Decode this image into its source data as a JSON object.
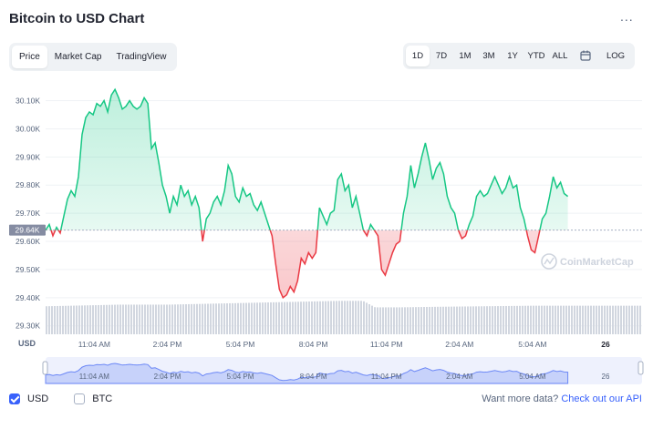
{
  "header": {
    "title": "Bitcoin to USD Chart",
    "more_label": "..."
  },
  "type_tabs": [
    "Price",
    "Market Cap",
    "TradingView"
  ],
  "active_type_tab": 0,
  "range_tabs": [
    "1D",
    "7D",
    "1M",
    "3M",
    "1Y",
    "YTD",
    "ALL"
  ],
  "active_range_tab": 0,
  "log_label": "LOG",
  "watermark": "CoinMarketCap",
  "currency_label": "USD",
  "current_price_label": "29.64K",
  "footer": {
    "usd_label": "USD",
    "btc_label": "BTC",
    "usd_checked": true,
    "btc_checked": false,
    "more_data_text": "Want more data?",
    "api_link_text": "Check out our API"
  },
  "colors": {
    "up": "#16c784",
    "down": "#ea3943",
    "accent": "#3861fb",
    "grid": "#eff2f5"
  },
  "chart_data": {
    "type": "area",
    "y_ticks": [
      "30.10K",
      "30.00K",
      "29.90K",
      "29.80K",
      "29.70K",
      "29.60K",
      "29.50K",
      "29.40K",
      "29.30K"
    ],
    "y_tick_values": [
      30100,
      30000,
      29900,
      29800,
      29700,
      29600,
      29500,
      29400,
      29300
    ],
    "ylim": [
      29270,
      30160
    ],
    "x_ticks": [
      "11:04 AM",
      "2:04 PM",
      "5:04 PM",
      "8:04 PM",
      "11:04 PM",
      "2:04 AM",
      "5:04 AM",
      "26"
    ],
    "reference_price": 29640,
    "hours_range": [
      0,
      24.5
    ],
    "x_tick_hours": [
      2,
      5,
      8,
      11,
      14,
      17,
      20,
      23
    ],
    "points": [
      [
        0.0,
        29640
      ],
      [
        0.15,
        29660
      ],
      [
        0.3,
        29620
      ],
      [
        0.45,
        29650
      ],
      [
        0.6,
        29630
      ],
      [
        0.75,
        29690
      ],
      [
        0.9,
        29750
      ],
      [
        1.05,
        29780
      ],
      [
        1.2,
        29760
      ],
      [
        1.35,
        29830
      ],
      [
        1.5,
        29980
      ],
      [
        1.65,
        30040
      ],
      [
        1.8,
        30060
      ],
      [
        1.95,
        30050
      ],
      [
        2.1,
        30090
      ],
      [
        2.25,
        30080
      ],
      [
        2.4,
        30100
      ],
      [
        2.55,
        30060
      ],
      [
        2.7,
        30120
      ],
      [
        2.85,
        30140
      ],
      [
        3.0,
        30110
      ],
      [
        3.15,
        30070
      ],
      [
        3.3,
        30080
      ],
      [
        3.45,
        30100
      ],
      [
        3.6,
        30080
      ],
      [
        3.75,
        30070
      ],
      [
        3.9,
        30080
      ],
      [
        4.05,
        30110
      ],
      [
        4.2,
        30090
      ],
      [
        4.35,
        29930
      ],
      [
        4.5,
        29950
      ],
      [
        4.65,
        29880
      ],
      [
        4.8,
        29800
      ],
      [
        4.95,
        29760
      ],
      [
        5.1,
        29700
      ],
      [
        5.25,
        29760
      ],
      [
        5.4,
        29730
      ],
      [
        5.55,
        29800
      ],
      [
        5.7,
        29760
      ],
      [
        5.85,
        29780
      ],
      [
        6.0,
        29730
      ],
      [
        6.15,
        29760
      ],
      [
        6.3,
        29720
      ],
      [
        6.45,
        29600
      ],
      [
        6.6,
        29680
      ],
      [
        6.75,
        29700
      ],
      [
        6.9,
        29740
      ],
      [
        7.05,
        29760
      ],
      [
        7.2,
        29730
      ],
      [
        7.35,
        29780
      ],
      [
        7.5,
        29870
      ],
      [
        7.65,
        29840
      ],
      [
        7.8,
        29760
      ],
      [
        7.95,
        29740
      ],
      [
        8.1,
        29790
      ],
      [
        8.25,
        29760
      ],
      [
        8.4,
        29770
      ],
      [
        8.55,
        29730
      ],
      [
        8.7,
        29710
      ],
      [
        8.85,
        29740
      ],
      [
        9.0,
        29700
      ],
      [
        9.15,
        29660
      ],
      [
        9.3,
        29620
      ],
      [
        9.45,
        29520
      ],
      [
        9.6,
        29430
      ],
      [
        9.75,
        29400
      ],
      [
        9.9,
        29410
      ],
      [
        10.05,
        29440
      ],
      [
        10.2,
        29420
      ],
      [
        10.35,
        29460
      ],
      [
        10.5,
        29540
      ],
      [
        10.65,
        29520
      ],
      [
        10.8,
        29560
      ],
      [
        10.95,
        29540
      ],
      [
        11.1,
        29560
      ],
      [
        11.25,
        29720
      ],
      [
        11.4,
        29690
      ],
      [
        11.55,
        29660
      ],
      [
        11.7,
        29700
      ],
      [
        11.85,
        29710
      ],
      [
        12.0,
        29820
      ],
      [
        12.15,
        29840
      ],
      [
        12.3,
        29780
      ],
      [
        12.45,
        29800
      ],
      [
        12.6,
        29720
      ],
      [
        12.75,
        29760
      ],
      [
        12.9,
        29700
      ],
      [
        13.05,
        29640
      ],
      [
        13.2,
        29620
      ],
      [
        13.35,
        29660
      ],
      [
        13.5,
        29640
      ],
      [
        13.65,
        29620
      ],
      [
        13.8,
        29500
      ],
      [
        13.95,
        29480
      ],
      [
        14.1,
        29520
      ],
      [
        14.25,
        29560
      ],
      [
        14.4,
        29590
      ],
      [
        14.55,
        29600
      ],
      [
        14.7,
        29700
      ],
      [
        14.85,
        29760
      ],
      [
        15.0,
        29870
      ],
      [
        15.15,
        29790
      ],
      [
        15.3,
        29840
      ],
      [
        15.45,
        29900
      ],
      [
        15.6,
        29950
      ],
      [
        15.75,
        29890
      ],
      [
        15.9,
        29820
      ],
      [
        16.05,
        29860
      ],
      [
        16.2,
        29880
      ],
      [
        16.35,
        29840
      ],
      [
        16.5,
        29760
      ],
      [
        16.65,
        29720
      ],
      [
        16.8,
        29700
      ],
      [
        16.95,
        29640
      ],
      [
        17.1,
        29610
      ],
      [
        17.25,
        29620
      ],
      [
        17.4,
        29660
      ],
      [
        17.55,
        29690
      ],
      [
        17.7,
        29760
      ],
      [
        17.85,
        29780
      ],
      [
        18.0,
        29760
      ],
      [
        18.15,
        29770
      ],
      [
        18.3,
        29800
      ],
      [
        18.45,
        29830
      ],
      [
        18.6,
        29800
      ],
      [
        18.75,
        29770
      ],
      [
        18.9,
        29790
      ],
      [
        19.05,
        29830
      ],
      [
        19.2,
        29790
      ],
      [
        19.35,
        29800
      ],
      [
        19.5,
        29720
      ],
      [
        19.65,
        29680
      ],
      [
        19.8,
        29620
      ],
      [
        19.95,
        29570
      ],
      [
        20.1,
        29560
      ],
      [
        20.25,
        29620
      ],
      [
        20.4,
        29680
      ],
      [
        20.55,
        29700
      ],
      [
        20.7,
        29760
      ],
      [
        20.85,
        29830
      ],
      [
        21.0,
        29790
      ],
      [
        21.15,
        29810
      ],
      [
        21.3,
        29770
      ],
      [
        21.45,
        29760
      ]
    ],
    "volume": [
      [
        0.0,
        0.52
      ],
      [
        1.0,
        0.53
      ],
      [
        2.0,
        0.54
      ],
      [
        3.0,
        0.55
      ],
      [
        4.0,
        0.55
      ],
      [
        5.0,
        0.55
      ],
      [
        6.0,
        0.56
      ],
      [
        7.0,
        0.57
      ],
      [
        8.0,
        0.58
      ],
      [
        9.0,
        0.59
      ],
      [
        10.0,
        0.6
      ],
      [
        11.0,
        0.61
      ],
      [
        12.0,
        0.62
      ],
      [
        13.0,
        0.62
      ],
      [
        13.5,
        0.5
      ],
      [
        14.5,
        0.5
      ],
      [
        16.0,
        0.51
      ],
      [
        18.0,
        0.52
      ],
      [
        20.0,
        0.53
      ],
      [
        21.45,
        0.53
      ]
    ]
  }
}
